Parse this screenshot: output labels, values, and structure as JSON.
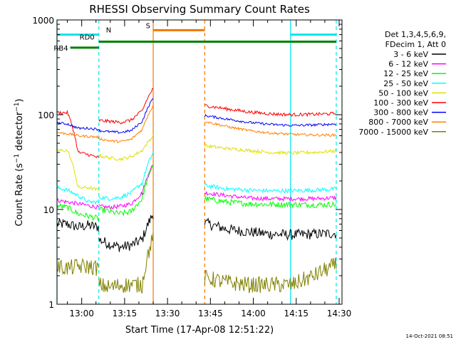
{
  "chart_data": {
    "type": "line",
    "title": "RHESSI Observing Summary Count Rates",
    "xlabel": "Start Time (17-Apr-08 12:51:22)",
    "ylabel_prefix": "Count Rate (s",
    "ylabel_mid": " detector",
    "ylabel_suffix": ")",
    "ylabel_sup": "−1",
    "y_scale": "log",
    "ylim": [
      1,
      1000
    ],
    "xlim": [
      "12:51:22",
      "14:31:00"
    ],
    "x_ticks": [
      "13:00",
      "13:15",
      "13:30",
      "13:45",
      "14:00",
      "14:15",
      "14:30"
    ],
    "y_ticks": [
      {
        "value": 1,
        "label": "1"
      },
      {
        "value": 10,
        "label": "10"
      },
      {
        "value": 100,
        "label": "100"
      },
      {
        "value": 1000,
        "label": "1000"
      }
    ],
    "legend_position": "right",
    "legend_header": [
      "Det 1,3,4,5,6,9,",
      "FDecim 1, Att 0"
    ],
    "timestamp": "14-Oct-2021 08:51",
    "flags": [
      {
        "label": "N",
        "color": "#00e5ee",
        "segments": [
          [
            "12:51:22",
            "13:06:00"
          ],
          [
            "14:13:00",
            "14:29:00"
          ]
        ],
        "value": 700
      },
      {
        "label": "S",
        "color": "#f07800",
        "segments": [
          [
            "13:25:00",
            "13:43:00"
          ]
        ],
        "value": 780
      },
      {
        "label": "RD0",
        "color": "#008000",
        "segments": [
          [
            "13:06:00",
            "14:29:00"
          ]
        ],
        "value": 590
      },
      {
        "label": "RB4",
        "color": "#008000",
        "segments": [
          [
            "12:56:00",
            "13:06:00"
          ]
        ],
        "value": 510
      }
    ],
    "vlines": [
      {
        "time": "12:51:22",
        "color": "#00e5ee",
        "style": "solid"
      },
      {
        "time": "13:06:00",
        "color": "#00e5ee",
        "style": "dashed"
      },
      {
        "time": "13:25:00",
        "color": "#f07800",
        "style": "solid"
      },
      {
        "time": "13:43:00",
        "color": "#f07800",
        "style": "dashed"
      },
      {
        "time": "14:13:00",
        "color": "#00e5ee",
        "style": "solid"
      },
      {
        "time": "14:29:00",
        "color": "#00e5ee",
        "style": "dashed"
      }
    ],
    "series": [
      {
        "name": "3 - 6 keV",
        "color": "#000000",
        "noise": 0.13,
        "segments": [
          {
            "t0": "12:51:22",
            "t1": "13:06:00",
            "v": [
              7,
              7,
              6.5,
              6.8,
              6.5
            ]
          },
          {
            "t0": "13:06:00",
            "t1": "13:25:00",
            "v": [
              4.8,
              4.3,
              4.0,
              4.2,
              4.8,
              9
            ]
          },
          {
            "t0": "13:43:00",
            "t1": "14:29:00",
            "v": [
              7.2,
              6.2,
              5.8,
              5.5,
              5.4,
              5.5,
              5.6
            ]
          }
        ]
      },
      {
        "name": "6 - 12 keV",
        "color": "#ff00ff",
        "noise": 0.05,
        "segments": [
          {
            "t0": "12:51:22",
            "t1": "13:06:00",
            "v": [
              12.5,
              12,
              11.5,
              11,
              10.5
            ]
          },
          {
            "t0": "13:06:00",
            "t1": "13:25:00",
            "v": [
              10.8,
              10.5,
              10.8,
              11.5,
              15,
              30
            ]
          },
          {
            "t0": "13:43:00",
            "t1": "14:29:00",
            "v": [
              15,
              14,
              13.2,
              13,
              13,
              13,
              13.3
            ]
          }
        ]
      },
      {
        "name": "12 - 25 keV",
        "color": "#00ff00",
        "noise": 0.07,
        "segments": [
          {
            "t0": "12:51:22",
            "t1": "13:06:00",
            "v": [
              11,
              10.5,
              9,
              8.5,
              8
            ]
          },
          {
            "t0": "13:06:00",
            "t1": "13:25:00",
            "v": [
              10,
              9.5,
              9,
              9.5,
              13,
              30
            ]
          },
          {
            "t0": "13:43:00",
            "t1": "14:29:00",
            "v": [
              13,
              12,
              11.5,
              11.3,
              11.3,
              11.2,
              11.3
            ]
          }
        ]
      },
      {
        "name": "25 - 50 keV",
        "color": "#00ffff",
        "noise": 0.05,
        "segments": [
          {
            "t0": "12:51:22",
            "t1": "13:06:00",
            "v": [
              17,
              16,
              14,
              12,
              12
            ]
          },
          {
            "t0": "13:06:00",
            "t1": "13:25:00",
            "v": [
              13.5,
              13,
              13.5,
              15,
              19,
              40
            ]
          },
          {
            "t0": "13:43:00",
            "t1": "14:29:00",
            "v": [
              18,
              16.5,
              16,
              15.7,
              15.8,
              16,
              16.5
            ]
          }
        ]
      },
      {
        "name": "50 - 100 keV",
        "color": "#e0e000",
        "noise": 0.04,
        "segments": [
          {
            "t0": "12:51:22",
            "t1": "13:06:00",
            "v": [
              42,
              42,
              17,
              17,
              16
            ]
          },
          {
            "t0": "13:06:00",
            "t1": "13:25:00",
            "v": [
              37,
              35,
              34,
              36,
              42,
              60
            ]
          },
          {
            "t0": "13:43:00",
            "t1": "14:29:00",
            "v": [
              47,
              44,
              42,
              40,
              39.5,
              40,
              41.5
            ]
          }
        ]
      },
      {
        "name": "100 - 300 keV",
        "color": "#ff0000",
        "noise": 0.04,
        "segments": [
          {
            "t0": "12:51:22",
            "t1": "13:06:00",
            "v": [
              105,
              105,
              40,
              38,
              35
            ]
          },
          {
            "t0": "13:06:00",
            "t1": "13:25:00",
            "v": [
              87,
              85,
              83,
              88,
              110,
              190
            ]
          },
          {
            "t0": "13:43:00",
            "t1": "14:29:00",
            "v": [
              125,
              115,
              107,
              102,
              100,
              101,
              103
            ]
          }
        ]
      },
      {
        "name": "300 - 800 keV",
        "color": "#0000ff",
        "noise": 0.03,
        "segments": [
          {
            "t0": "12:51:22",
            "t1": "13:06:00",
            "v": [
              82,
              80,
              72,
              72,
              70
            ]
          },
          {
            "t0": "13:06:00",
            "t1": "13:25:00",
            "v": [
              68,
              66,
              65,
              68,
              85,
              150
            ]
          },
          {
            "t0": "13:43:00",
            "t1": "14:29:00",
            "v": [
              98,
              90,
              83,
              79,
              77,
              78,
              80
            ]
          }
        ]
      },
      {
        "name": "800 - 7000 keV",
        "color": "#ff8000",
        "noise": 0.03,
        "segments": [
          {
            "t0": "12:51:22",
            "t1": "13:06:00",
            "v": [
              65,
              63,
              60,
              59,
              58
            ]
          },
          {
            "t0": "13:06:00",
            "t1": "13:25:00",
            "v": [
              56,
              53,
              52,
              55,
              70,
              125
            ]
          },
          {
            "t0": "13:43:00",
            "t1": "14:29:00",
            "v": [
              85,
              75,
              68,
              64,
              62,
              61,
              61
            ]
          }
        ]
      },
      {
        "name": "7000 - 15000 keV",
        "color": "#808000",
        "noise": 0.2,
        "segments": [
          {
            "t0": "12:51:22",
            "t1": "13:06:00",
            "v": [
              2.5,
              2.4,
              2.5,
              2.5,
              2.4
            ]
          },
          {
            "t0": "13:06:00",
            "t1": "13:25:00",
            "v": [
              1.6,
              1.5,
              1.6,
              1.6,
              1.6,
              5
            ]
          },
          {
            "t0": "13:43:00",
            "t1": "14:29:00",
            "v": [
              1.9,
              1.7,
              1.6,
              1.6,
              1.6,
              2.0,
              2.6
            ]
          }
        ]
      }
    ]
  }
}
